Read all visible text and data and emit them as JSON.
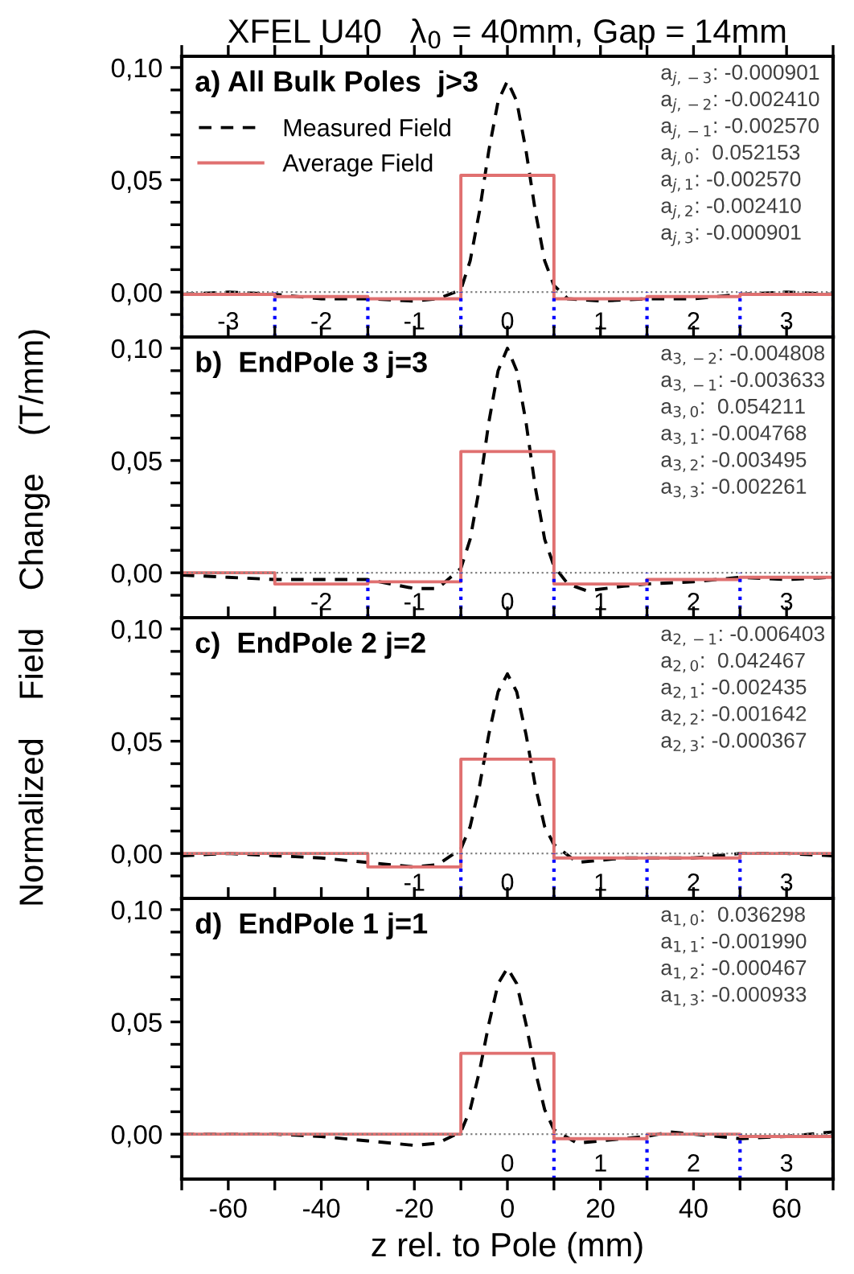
{
  "chart_data": [
    {
      "type": "line",
      "title": "XFEL U40   λ$_{0}$ = 40mm, Gap = 14mm",
      "subtitle": "a) All Bulk Poles  j>3",
      "ylabel": "Normalized    Field    Change    (T/mm)",
      "legend": "top left",
      "tick_labels": "y",
      "grid": false,
      "marker": "none",
      "xlim": [
        -70,
        70
      ],
      "ylim": [
        -0.02,
        0.105
      ],
      "xticks": [
        -70,
        -60,
        -50,
        -40,
        -30,
        -20,
        -10,
        0,
        10,
        20,
        30,
        40,
        50,
        60,
        70
      ],
      "yticks": [
        {
          "value": -0.01,
          "label": null
        },
        {
          "value": 0,
          "label": "0,00"
        },
        {
          "value": 0.01,
          "label": null
        },
        {
          "value": 0.02,
          "label": null
        },
        {
          "value": 0.03,
          "label": null
        },
        {
          "value": 0.04,
          "label": null
        },
        {
          "value": 0.05,
          "label": "0,05"
        },
        {
          "value": 0.06,
          "label": null
        },
        {
          "value": 0.07,
          "label": null
        },
        {
          "value": 0.08,
          "label": null
        },
        {
          "value": 0.09,
          "label": null
        },
        {
          "value": 0.1,
          "label": "0,10"
        }
      ],
      "series": [
        {
          "name": "Measured Field",
          "line_style": "dashed",
          "color": "#000000",
          "x": [
            -70,
            -60,
            -50,
            -40,
            -30,
            -20,
            -15,
            -10,
            -8,
            -6,
            -4,
            -2,
            0,
            2,
            4,
            6,
            8,
            10,
            13,
            20,
            30,
            40,
            50,
            60,
            70
          ],
          "values": [
            -0.001,
            0,
            -0.001,
            -0.003,
            -0.003,
            -0.004,
            -0.003,
            0.001,
            0.014,
            0.036,
            0.063,
            0.085,
            0.094,
            0.085,
            0.063,
            0.036,
            0.014,
            0.003,
            -0.003,
            -0.004,
            -0.003,
            -0.003,
            -0.001,
            0,
            -0.001
          ]
        },
        {
          "name": "Average Field",
          "type": "step",
          "line_style": "solid",
          "color": "#e07070",
          "x": [
            -70,
            -50,
            -30,
            -10,
            10,
            30,
            50,
            70
          ],
          "values": [
            -0.001,
            -0.002,
            -0.003,
            0.052,
            -0.003,
            -0.002,
            -0.001,
            -0.001
          ]
        }
      ],
      "ref_lines": [
        {
          "axis": "y",
          "value": 0,
          "color": "#808080",
          "line_style": "dotted"
        },
        {
          "axis": "x",
          "value": -70,
          "color": "#0000ff",
          "line_style": "dotted"
        },
        {
          "axis": "x",
          "value": -50,
          "color": "#0000ff",
          "line_style": "dotted"
        },
        {
          "axis": "x",
          "value": -30,
          "color": "#0000ff",
          "line_style": "dotted"
        },
        {
          "axis": "x",
          "value": -10,
          "color": "#0000ff",
          "line_style": "dotted"
        },
        {
          "axis": "x",
          "value": 10,
          "color": "#0000ff",
          "line_style": "dotted"
        },
        {
          "axis": "x",
          "value": 30,
          "color": "#0000ff",
          "line_style": "dotted"
        },
        {
          "axis": "x",
          "value": 50,
          "color": "#0000ff",
          "line_style": "dotted"
        },
        {
          "axis": "x",
          "value": 70,
          "color": "#0000ff",
          "line_style": "dotted"
        }
      ],
      "annotations": [
        "a$_{j,−3}$: -0.000901",
        "a$_{j,−2}$: -0.002410",
        "a$_{j,−1}$: -0.002570",
        "a$_{j,0}$:  0.052153",
        "a$_{j,1}$: -0.002570",
        "a$_{j,2}$: -0.002410",
        "a$_{j,3}$: -0.000901",
        "-3",
        "-2",
        "-1",
        "0",
        "1",
        "2",
        "3"
      ]
    },
    {
      "type": "line",
      "subtitle": "b)  EndPole 3 j=3",
      "tick_labels": "y",
      "grid": false,
      "marker": "none",
      "xlim": [
        -70,
        70
      ],
      "ylim": [
        -0.02,
        0.105
      ],
      "xticks": [
        -70,
        -60,
        -50,
        -40,
        -30,
        -20,
        -10,
        0,
        10,
        20,
        30,
        40,
        50,
        60,
        70
      ],
      "yticks": [
        {
          "value": -0.01,
          "label": null
        },
        {
          "value": 0,
          "label": "0,00"
        },
        {
          "value": 0.01,
          "label": null
        },
        {
          "value": 0.02,
          "label": null
        },
        {
          "value": 0.03,
          "label": null
        },
        {
          "value": 0.04,
          "label": null
        },
        {
          "value": 0.05,
          "label": "0,05"
        },
        {
          "value": 0.06,
          "label": null
        },
        {
          "value": 0.07,
          "label": null
        },
        {
          "value": 0.08,
          "label": null
        },
        {
          "value": 0.09,
          "label": null
        },
        {
          "value": 0.1,
          "label": "0,10"
        }
      ],
      "series": [
        {
          "line_style": "dashed",
          "color": "#000000",
          "x": [
            -70,
            -60,
            -50,
            -40,
            -30,
            -20,
            -15,
            -10,
            -8,
            -6,
            -4,
            -2,
            0,
            2,
            4,
            6,
            8,
            10,
            13,
            17,
            25,
            30,
            40,
            50,
            60,
            70
          ],
          "values": [
            -0.001,
            -0.002,
            -0.003,
            -0.003,
            -0.003,
            -0.007,
            -0.007,
            0.002,
            0.015,
            0.038,
            0.067,
            0.09,
            0.1,
            0.09,
            0.067,
            0.038,
            0.015,
            0.003,
            -0.005,
            -0.008,
            -0.006,
            -0.005,
            -0.004,
            -0.002,
            -0.003,
            -0.002
          ]
        },
        {
          "type": "step",
          "line_style": "solid",
          "color": "#e07070",
          "x": [
            -70,
            -50,
            -30,
            -10,
            10,
            30,
            50,
            70
          ],
          "values": [
            0,
            -0.005,
            -0.004,
            0.054,
            -0.005,
            -0.003,
            -0.002,
            -0.002
          ]
        }
      ],
      "ref_lines": [
        {
          "axis": "y",
          "value": 0,
          "color": "#808080",
          "line_style": "dotted"
        },
        {
          "axis": "x",
          "value": -30,
          "color": "#0000ff",
          "line_style": "dotted"
        },
        {
          "axis": "x",
          "value": -10,
          "color": "#0000ff",
          "line_style": "dotted"
        },
        {
          "axis": "x",
          "value": 10,
          "color": "#0000ff",
          "line_style": "dotted"
        },
        {
          "axis": "x",
          "value": 30,
          "color": "#0000ff",
          "line_style": "dotted"
        },
        {
          "axis": "x",
          "value": 50,
          "color": "#0000ff",
          "line_style": "dotted"
        },
        {
          "axis": "x",
          "value": 70,
          "color": "#0000ff",
          "line_style": "dotted"
        }
      ],
      "annotations": [
        "a$_{3,−2}$: -0.004808",
        "a$_{3,−1}$: -0.003633",
        "a$_{3,0}$:  0.054211",
        "a$_{3,1}$: -0.004768",
        "a$_{3,2}$: -0.003495",
        "a$_{3,3}$: -0.002261",
        "-2",
        "-1",
        "0",
        "1",
        "2",
        "3"
      ]
    },
    {
      "type": "line",
      "subtitle": "c)  EndPole 2 j=2",
      "tick_labels": "y",
      "grid": false,
      "marker": "none",
      "xlim": [
        -70,
        70
      ],
      "ylim": [
        -0.02,
        0.105
      ],
      "xticks": [
        -70,
        -60,
        -50,
        -40,
        -30,
        -20,
        -10,
        0,
        10,
        20,
        30,
        40,
        50,
        60,
        70
      ],
      "yticks": [
        {
          "value": -0.01,
          "label": null
        },
        {
          "value": 0,
          "label": "0,00"
        },
        {
          "value": 0.01,
          "label": null
        },
        {
          "value": 0.02,
          "label": null
        },
        {
          "value": 0.03,
          "label": null
        },
        {
          "value": 0.04,
          "label": null
        },
        {
          "value": 0.05,
          "label": "0,05"
        },
        {
          "value": 0.06,
          "label": null
        },
        {
          "value": 0.07,
          "label": null
        },
        {
          "value": 0.08,
          "label": null
        },
        {
          "value": 0.09,
          "label": null
        },
        {
          "value": 0.1,
          "label": "0,10"
        }
      ],
      "series": [
        {
          "line_style": "dashed",
          "color": "#000000",
          "x": [
            -70,
            -60,
            -50,
            -40,
            -30,
            -20,
            -15,
            -10,
            -8,
            -6,
            -4,
            -2,
            0,
            2,
            4,
            6,
            8,
            10,
            15,
            25,
            40,
            50,
            60,
            70
          ],
          "values": [
            -0.001,
            0,
            -0.001,
            -0.002,
            -0.004,
            -0.006,
            -0.005,
            0.002,
            0.012,
            0.03,
            0.053,
            0.072,
            0.08,
            0.072,
            0.053,
            0.03,
            0.012,
            0.004,
            -0.004,
            -0.002,
            -0.002,
            0,
            0,
            -0.001
          ]
        },
        {
          "type": "step",
          "line_style": "solid",
          "color": "#e07070",
          "x": [
            -70,
            -30,
            -10,
            10,
            30,
            50,
            70
          ],
          "values": [
            0,
            -0.006,
            0.042,
            -0.002,
            -0.002,
            0,
            0
          ]
        }
      ],
      "ref_lines": [
        {
          "axis": "y",
          "value": 0,
          "color": "#808080",
          "line_style": "dotted"
        },
        {
          "axis": "x",
          "value": -10,
          "color": "#0000ff",
          "line_style": "dotted"
        },
        {
          "axis": "x",
          "value": 10,
          "color": "#0000ff",
          "line_style": "dotted"
        },
        {
          "axis": "x",
          "value": 30,
          "color": "#0000ff",
          "line_style": "dotted"
        },
        {
          "axis": "x",
          "value": 50,
          "color": "#0000ff",
          "line_style": "dotted"
        },
        {
          "axis": "x",
          "value": 70,
          "color": "#0000ff",
          "line_style": "dotted"
        }
      ],
      "annotations": [
        "a$_{2,−1}$: -0.006403",
        "a$_{2,0}$:  0.042467",
        "a$_{2,1}$: -0.002435",
        "a$_{2,2}$: -0.001642",
        "a$_{2,3}$: -0.000367",
        "-1",
        "0",
        "1",
        "2",
        "3"
      ]
    },
    {
      "type": "line",
      "subtitle": "d)  EndPole 1 j=1",
      "xlabel": "z rel. to Pole (mm)",
      "grid": false,
      "marker": "none",
      "xlim": [
        -70,
        70
      ],
      "ylim": [
        -0.02,
        0.105
      ],
      "xticks": [
        {
          "value": -70,
          "label": null
        },
        -60,
        {
          "value": -50,
          "label": null
        },
        -40,
        {
          "value": -30,
          "label": null
        },
        -20,
        {
          "value": -10,
          "label": null
        },
        0,
        {
          "value": 10,
          "label": null
        },
        20,
        {
          "value": 30,
          "label": null
        },
        40,
        {
          "value": 50,
          "label": null
        },
        60,
        {
          "value": 70,
          "label": null
        }
      ],
      "yticks": [
        {
          "value": -0.01,
          "label": null
        },
        {
          "value": 0,
          "label": "0,00"
        },
        {
          "value": 0.01,
          "label": null
        },
        {
          "value": 0.02,
          "label": null
        },
        {
          "value": 0.03,
          "label": null
        },
        {
          "value": 0.04,
          "label": null
        },
        {
          "value": 0.05,
          "label": "0,05"
        },
        {
          "value": 0.06,
          "label": null
        },
        {
          "value": 0.07,
          "label": null
        },
        {
          "value": 0.08,
          "label": null
        },
        {
          "value": 0.09,
          "label": null
        },
        {
          "value": 0.1,
          "label": "0,10"
        }
      ],
      "series": [
        {
          "line_style": "dashed",
          "color": "#000000",
          "x": [
            -70,
            -60,
            -50,
            -40,
            -30,
            -20,
            -15,
            -10,
            -8,
            -6,
            -4,
            -2,
            0,
            2,
            4,
            6,
            8,
            10,
            15,
            20,
            30,
            35,
            40,
            50,
            60,
            70
          ],
          "values": [
            0,
            0,
            0,
            -0.001,
            -0.003,
            -0.005,
            -0.004,
            0.001,
            0.011,
            0.028,
            0.049,
            0.067,
            0.074,
            0.067,
            0.049,
            0.028,
            0.011,
            0.002,
            -0.004,
            -0.003,
            -0.001,
            0.001,
            0,
            -0.002,
            -0.001,
            0.001
          ]
        },
        {
          "type": "step",
          "line_style": "solid",
          "color": "#e07070",
          "x": [
            -70,
            -10,
            10,
            30,
            50,
            70
          ],
          "values": [
            0,
            0.036,
            -0.002,
            0,
            -0.001,
            -0.001
          ]
        }
      ],
      "ref_lines": [
        {
          "axis": "y",
          "value": 0,
          "color": "#808080",
          "line_style": "dotted"
        },
        {
          "axis": "x",
          "value": 10,
          "color": "#0000ff",
          "line_style": "dotted"
        },
        {
          "axis": "x",
          "value": 30,
          "color": "#0000ff",
          "line_style": "dotted"
        },
        {
          "axis": "x",
          "value": 50,
          "color": "#0000ff",
          "line_style": "dotted"
        },
        {
          "axis": "x",
          "value": 70,
          "color": "#0000ff",
          "line_style": "dotted"
        }
      ],
      "annotations": [
        "a$_{1,0}$:  0.036298",
        "a$_{1,1}$: -0.001990",
        "a$_{1,2}$: -0.000467",
        "a$_{1,3}$: -0.000933",
        "0",
        "1",
        "2",
        "3"
      ]
    }
  ]
}
